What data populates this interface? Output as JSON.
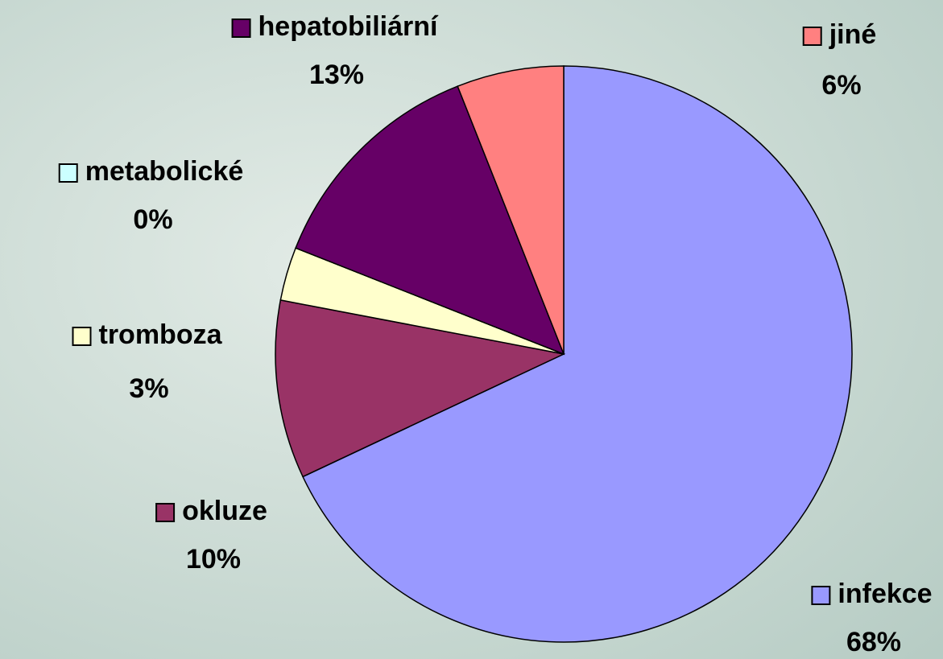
{
  "chart_data": {
    "type": "pie",
    "categories": [
      "infekce",
      "okluze",
      "tromboza",
      "metabolické",
      "hepatobiliární",
      "jiné"
    ],
    "values": [
      68,
      10,
      3,
      0,
      13,
      6
    ],
    "value_labels": [
      "68%",
      "10%",
      "3%",
      "0%",
      "13%",
      "6%"
    ],
    "colors": [
      "#9999ff",
      "#993366",
      "#ffffcc",
      "#ccffff",
      "#660066",
      "#ff8080"
    ]
  }
}
